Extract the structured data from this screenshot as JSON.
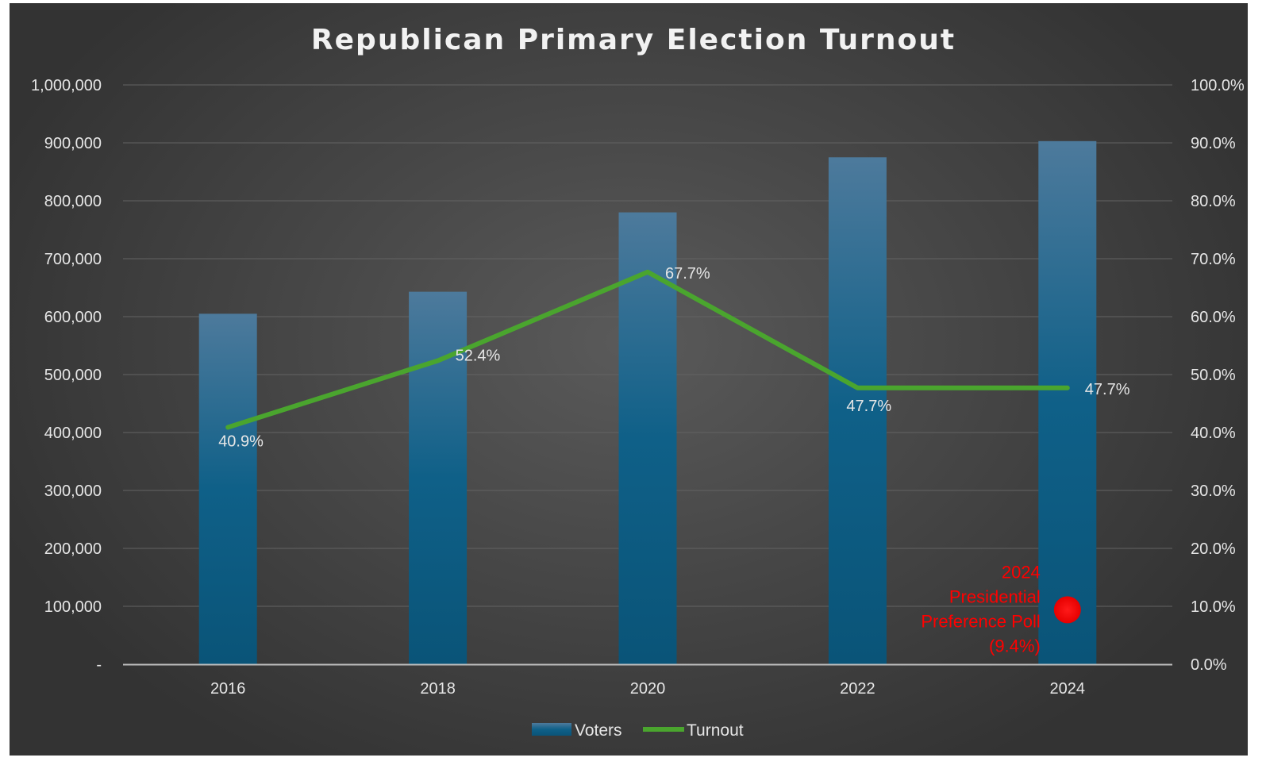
{
  "chart_data": {
    "type": "bar",
    "title": "Republican Primary Election Turnout",
    "categories": [
      "2016",
      "2018",
      "2020",
      "2022",
      "2024"
    ],
    "series": [
      {
        "name": "Voters",
        "type": "bar",
        "axis": "left",
        "values": [
          605000,
          643000,
          780000,
          875000,
          903000
        ],
        "color": "#0e5f8a"
      },
      {
        "name": "Turnout",
        "type": "line",
        "axis": "right",
        "values": [
          40.9,
          52.4,
          67.7,
          47.7,
          47.7
        ],
        "labels": [
          "40.9%",
          "52.4%",
          "67.7%",
          "47.7%",
          "47.7%"
        ],
        "color": "#4aa52e"
      }
    ],
    "y_left": {
      "min": 0,
      "max": 1000000,
      "step": 100000,
      "tick_labels": [
        "-",
        "100,000",
        "200,000",
        "300,000",
        "400,000",
        "500,000",
        "600,000",
        "700,000",
        "800,000",
        "900,000",
        "1,000,000"
      ]
    },
    "y_right": {
      "min": 0,
      "max": 100,
      "step": 10,
      "tick_labels": [
        "0.0%",
        "10.0%",
        "20.0%",
        "30.0%",
        "40.0%",
        "50.0%",
        "60.0%",
        "70.0%",
        "80.0%",
        "90.0%",
        "100.0%"
      ]
    },
    "annotation": {
      "category": "2024",
      "value": 9.4,
      "axis": "right",
      "lines": [
        "2024",
        "Presidential",
        "Preference Poll",
        "(9.4%)"
      ],
      "color": "#ff0000"
    },
    "grid": true,
    "legend": {
      "position": "bottom",
      "entries": [
        "Voters",
        "Turnout"
      ]
    }
  }
}
